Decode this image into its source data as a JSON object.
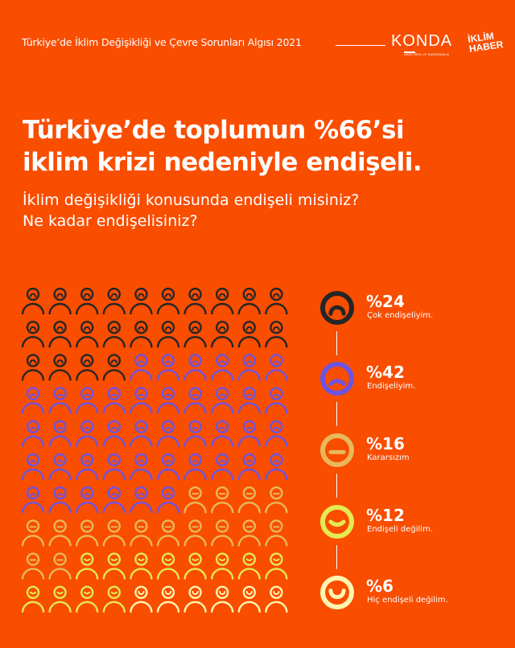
{
  "header": {
    "title": "Türkiye’de İklim Değişikliği ve Çevre Sorunları Algısı 2021",
    "konda_logo": "KONDA",
    "konda_tagline": "ARAŞTIRMA VE DANIŞMANLIK",
    "iklim_haber_logo": "İKLİM HABER"
  },
  "headline": {
    "line1": "Türkiye’de toplumun %66’si",
    "line2": "iklim krizi nedeniyle endişeli."
  },
  "question": {
    "line1": "İklim değişikliği konusunda endişeli misiniz?",
    "line2": "Ne kadar endişelisiniz?"
  },
  "legend": [
    {
      "pct": "%24",
      "label": "Çok endişeliyim.",
      "value": 24,
      "color": "#262626",
      "face": "very-worried"
    },
    {
      "pct": "%42",
      "label": "Endişeliyim.",
      "value": 42,
      "color": "#6C55E0",
      "face": "worried"
    },
    {
      "pct": "%16",
      "label": "Kararsızım",
      "value": 16,
      "color": "#E8B95A",
      "face": "neutral"
    },
    {
      "pct": "%12",
      "label": "Endişeli değilim.",
      "value": 12,
      "color": "#E4EA52",
      "face": "not-worried"
    },
    {
      "pct": "%6",
      "label": "Hiç endişeli değilim.",
      "value": 6,
      "color": "#FFF5B0",
      "face": "not-worried-at-all"
    }
  ],
  "colors": {
    "background": "#F94D00",
    "text": "#FFFFFF"
  }
}
